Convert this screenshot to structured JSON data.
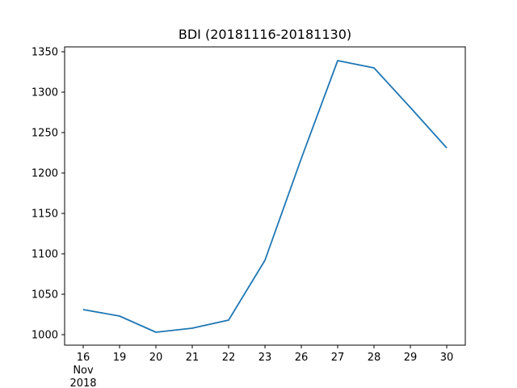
{
  "chart_data": {
    "type": "line",
    "title": "BDI (20181116-20181130)",
    "xlabel": "",
    "ylabel": "",
    "categories": [
      "16",
      "19",
      "20",
      "21",
      "22",
      "23",
      "26",
      "27",
      "28",
      "29",
      "30"
    ],
    "x_sublabel_first": [
      "Nov",
      "2018"
    ],
    "series": [
      {
        "name": "BDI",
        "color": "#1f77b4",
        "values": [
          1031,
          1023,
          1003,
          1008,
          1018,
          1092,
          1218,
          1339,
          1330,
          1281,
          1231
        ]
      }
    ],
    "yticks": [
      1000,
      1050,
      1100,
      1150,
      1200,
      1250,
      1300,
      1350
    ],
    "ylim": [
      987,
      1356
    ],
    "grid": false,
    "legend": "none"
  }
}
